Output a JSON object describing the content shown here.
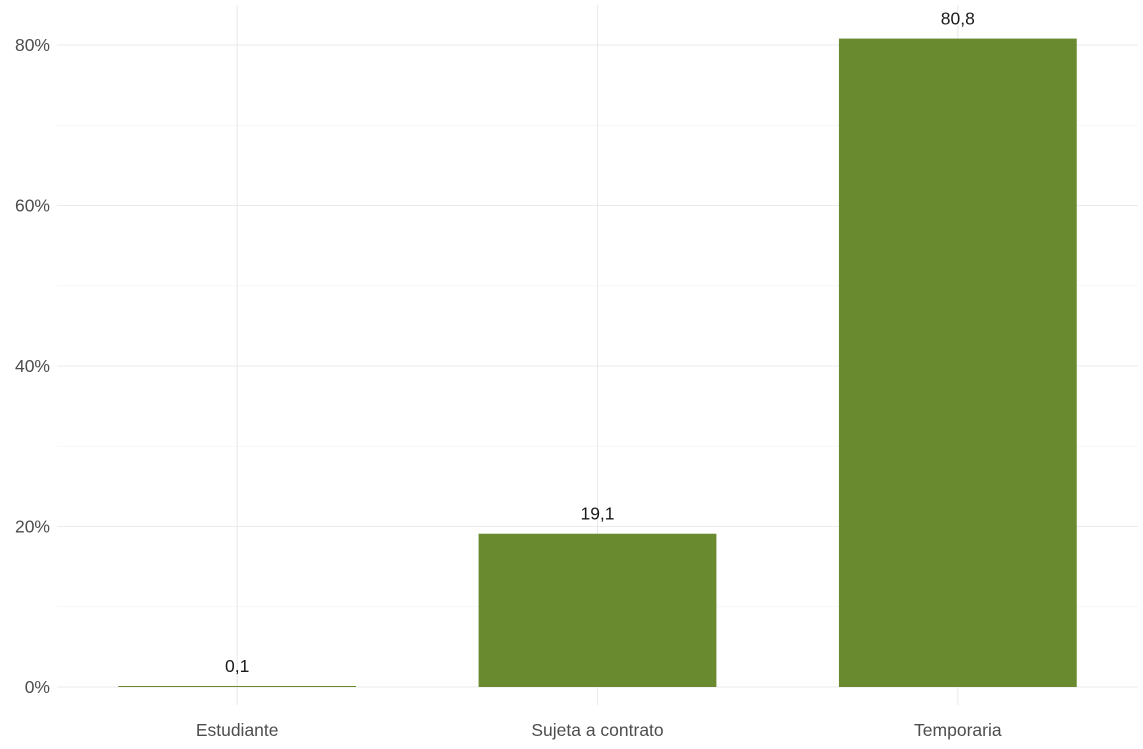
{
  "chart_data": {
    "type": "bar",
    "title": "",
    "xlabel": "",
    "ylabel": "",
    "categories": [
      "Estudiante",
      "Sujeta a contrato",
      "Temporaria"
    ],
    "values": [
      0.1,
      19.1,
      80.8
    ],
    "value_labels": [
      "0,1",
      "19,1",
      "80,8"
    ],
    "ylim": [
      0,
      80.8
    ],
    "yticks": [
      0,
      20,
      40,
      60,
      80
    ],
    "ytick_labels": [
      "0%",
      "20%",
      "40%",
      "60%",
      "80%"
    ],
    "bar_color": "#6a8a2f",
    "grid": true,
    "legend": "none"
  }
}
